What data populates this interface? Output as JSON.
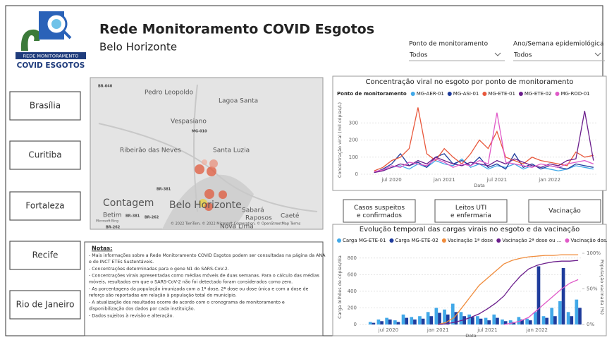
{
  "logo": {
    "line1": "REDE MONITORAMENTO",
    "line2": "COVID ESGOTOS"
  },
  "header": {
    "title": "Rede Monitoramento COVID Esgotos",
    "subtitle": "Belo Horizonte"
  },
  "filters": [
    {
      "label": "Ponto de monitoramento",
      "value": "Todos"
    },
    {
      "label": "Ano/Semana epidemiológica",
      "value": "Todos"
    }
  ],
  "cities": [
    "Brasília",
    "Curitiba",
    "Fortaleza",
    "Recife",
    "Rio de Janeiro"
  ],
  "map": {
    "labels": [
      "BR-040",
      "Pedro Leopoldo",
      "Lagoa Santa",
      "Vespasiano",
      "MG-010",
      "Ribeirão das Neves",
      "Santa Luzia",
      "BR-381",
      "Sabará",
      "Caeté",
      "Contagem",
      "Belo Horizonte",
      "Betim",
      "BR-381",
      "BR-262",
      "BR-262",
      "Raposos",
      "Nova Lima"
    ],
    "attribution": "© 2022 TomTom, © 2022 Microsoft Corporation, © OpenStreetMap  Terms",
    "bing": "Microsoft Bing"
  },
  "notes": {
    "title": "Notas:",
    "items": [
      "- Mais informações sobre a Rede Monitoramento COVID Esgotos podem ser consultadas na página da ANA e do INCT ETEs Sustentáveis.",
      "- Concentrações determinadas para o gene N1 do SARS-CoV-2.",
      "- Concentrações virais apresentadas como médias móveis de duas semanas. Para o cálculo das médias móveis, resultados em que o SARS-CoV-2 não foi detectado foram considerados como zero.",
      "- As porcentagens da população imunizada com a 1ª dose, 2ª dose ou dose única e com a dose de reforço são reportadas em relação à população total do município.",
      "- A atualização dos resultados ocorre de acordo com o cronograma de monitoramento e disponibilização dos dados por cada instituição.",
      "- Dados sujeitos à revisão e alteração."
    ]
  },
  "tabs": [
    "Casos suspeitos e confirmados",
    "Leitos UTI e enfermaria",
    "Vacinação"
  ],
  "chart_data": [
    {
      "type": "line",
      "title": "Concentração viral no esgoto por ponto de monitoramento",
      "legend_title": "Ponto de monitoramento",
      "x_label": "Data",
      "y_label": "Concentração viral (mil cópias/L)",
      "categories": [
        null,
        null,
        null,
        "jul 2020",
        null,
        null,
        null,
        null,
        null,
        "jan 2021",
        null,
        null,
        null,
        null,
        null,
        "jul 2021",
        null,
        null,
        null,
        null,
        null,
        "jan 2022",
        null,
        null,
        null,
        null,
        null
      ],
      "ylim": [
        0,
        400
      ],
      "yticks": [
        0,
        100,
        200,
        300
      ],
      "series": [
        {
          "name": "MG-AER-01",
          "color": "#41a8e8",
          "values": [
            null,
            null,
            20,
            40,
            50,
            30,
            60,
            40,
            80,
            60,
            50,
            90,
            40,
            60,
            30,
            50,
            40,
            60,
            30,
            50,
            40,
            30,
            20,
            30,
            50,
            40,
            30
          ]
        },
        {
          "name": "MG-ASI-01",
          "color": "#1f3c9c",
          "values": [
            null,
            10,
            30,
            60,
            120,
            50,
            70,
            40,
            100,
            120,
            60,
            80,
            50,
            100,
            40,
            60,
            30,
            120,
            40,
            60,
            30,
            50,
            40,
            30,
            60,
            50,
            40
          ]
        },
        {
          "name": "MG-ETE-01",
          "color": "#e8583c",
          "values": [
            null,
            20,
            40,
            80,
            100,
            150,
            390,
            120,
            80,
            150,
            100,
            60,
            120,
            200,
            150,
            250,
            100,
            80,
            60,
            100,
            80,
            70,
            60,
            50,
            130,
            100,
            110
          ]
        },
        {
          "name": "MG-ETE-02",
          "color": "#6b1e8c",
          "values": [
            null,
            10,
            20,
            40,
            60,
            50,
            80,
            60,
            100,
            80,
            60,
            50,
            70,
            60,
            50,
            80,
            60,
            90,
            70,
            50,
            40,
            60,
            50,
            80,
            90,
            370,
            80
          ]
        },
        {
          "name": "MG-ROD-01",
          "color": "#e05ac8",
          "values": [
            null,
            15,
            25,
            50,
            40,
            70,
            60,
            50,
            90,
            70,
            40,
            60,
            50,
            80,
            60,
            360,
            70,
            60,
            50,
            40,
            60,
            50,
            40,
            60,
            70,
            80,
            60
          ]
        }
      ]
    },
    {
      "type": "combo",
      "title": "Evolução temporal das cargas virais no esgoto e da vacinação",
      "x_label": "Data",
      "y_label": "Carga bilhões de cópias/dia",
      "y2_label": "População vacinada (%)",
      "categories": [
        null,
        null,
        null,
        "jul 2020",
        null,
        null,
        null,
        null,
        null,
        "jan 2021",
        null,
        null,
        null,
        null,
        null,
        "jul 2021",
        null,
        null,
        null,
        null,
        null,
        "jan 2022",
        null,
        null,
        null,
        null,
        null
      ],
      "ylim": [
        0,
        900
      ],
      "yticks": [
        0,
        200,
        400,
        600,
        800
      ],
      "y2lim": [
        0,
        105
      ],
      "y2ticks": [
        {
          "value": 0,
          "label": "0%"
        },
        {
          "value": 50,
          "label": "50%"
        },
        {
          "value": 100,
          "label": "100%"
        }
      ],
      "series": [
        {
          "name": "Carga MG-ETE-01",
          "color": "#41a8e8",
          "kind": "bar",
          "values": [
            null,
            30,
            60,
            80,
            50,
            120,
            90,
            100,
            150,
            200,
            180,
            250,
            150,
            120,
            100,
            80,
            120,
            60,
            50,
            90,
            70,
            150,
            100,
            200,
            280,
            150,
            300
          ]
        },
        {
          "name": "Carga MG-ETE-02",
          "color": "#1f3c9c",
          "kind": "bar",
          "values": [
            null,
            20,
            40,
            60,
            30,
            80,
            60,
            70,
            100,
            140,
            120,
            150,
            100,
            90,
            70,
            50,
            80,
            40,
            30,
            60,
            50,
            700,
            80,
            100,
            680,
            100,
            200
          ]
        },
        {
          "name": "Vacinação 1ª dose",
          "color": "#f08c3c",
          "kind": "line",
          "axis": "y2",
          "values": [
            null,
            null,
            null,
            null,
            null,
            null,
            null,
            null,
            null,
            0,
            3,
            10,
            25,
            40,
            55,
            65,
            75,
            85,
            90,
            93,
            95,
            96,
            97,
            97,
            98,
            98,
            98
          ]
        },
        {
          "name": "Vacinação 2ª dose ou ...",
          "color": "#6b1e8c",
          "kind": "line",
          "axis": "y2",
          "values": [
            null,
            null,
            null,
            null,
            null,
            null,
            null,
            null,
            null,
            0,
            1,
            3,
            6,
            10,
            15,
            22,
            30,
            40,
            55,
            68,
            78,
            83,
            86,
            88,
            89,
            89,
            90
          ]
        },
        {
          "name": "Vacinação dos...",
          "color": "#e05ac8",
          "kind": "line",
          "axis": "y2",
          "values": [
            null,
            null,
            null,
            null,
            null,
            null,
            null,
            null,
            null,
            null,
            null,
            null,
            null,
            null,
            null,
            null,
            null,
            0,
            2,
            5,
            10,
            20,
            30,
            40,
            50,
            58,
            63
          ]
        }
      ]
    }
  ]
}
